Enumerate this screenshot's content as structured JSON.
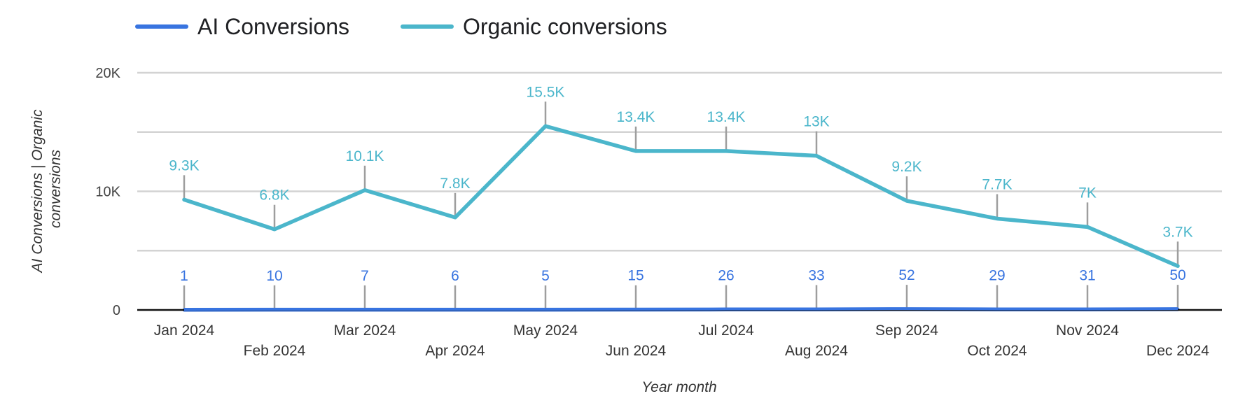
{
  "chart_data": {
    "type": "line",
    "xlabel": "Year month",
    "ylabel": "AI Conversions | Organic conversions",
    "ylabel_lines": [
      "AI Conversions | Organic",
      "conversions"
    ],
    "ylim": [
      0,
      20000
    ],
    "yticks": [
      0,
      10000,
      20000
    ],
    "ytick_labels": [
      "0",
      "10K",
      "20K"
    ],
    "grid": true,
    "legend_position": "top-left",
    "categories": [
      "Jan 2024",
      "Feb 2024",
      "Mar 2024",
      "Apr 2024",
      "May 2024",
      "Jun 2024",
      "Jul 2024",
      "Aug 2024",
      "Sep 2024",
      "Oct 2024",
      "Nov 2024",
      "Dec 2024"
    ],
    "series": [
      {
        "name": "AI Conversions",
        "color": "#3874e0",
        "values": [
          1,
          10,
          7,
          6,
          5,
          15,
          26,
          33,
          52,
          29,
          31,
          50
        ],
        "labels": [
          "1",
          "10",
          "7",
          "6",
          "5",
          "15",
          "26",
          "33",
          "52",
          "29",
          "31",
          "50"
        ]
      },
      {
        "name": "Organic conversions",
        "color": "#4bb6cb",
        "values": [
          9300,
          6800,
          10100,
          7800,
          15500,
          13400,
          13400,
          13000,
          9200,
          7700,
          7000,
          3700
        ],
        "labels": [
          "9.3K",
          "6.8K",
          "10.1K",
          "7.8K",
          "15.5K",
          "13.4K",
          "13.4K",
          "13K",
          "9.2K",
          "7.7K",
          "7K",
          "3.7K"
        ]
      }
    ]
  }
}
